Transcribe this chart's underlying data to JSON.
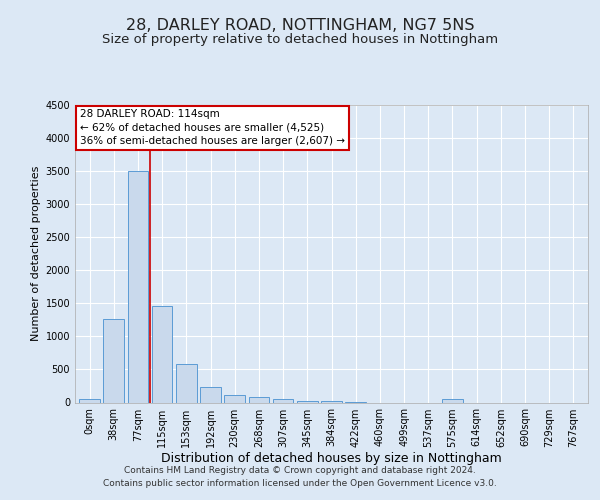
{
  "title1": "28, DARLEY ROAD, NOTTINGHAM, NG7 5NS",
  "title2": "Size of property relative to detached houses in Nottingham",
  "xlabel": "Distribution of detached houses by size in Nottingham",
  "ylabel": "Number of detached properties",
  "bin_labels": [
    "0sqm",
    "38sqm",
    "77sqm",
    "115sqm",
    "153sqm",
    "192sqm",
    "230sqm",
    "268sqm",
    "307sqm",
    "345sqm",
    "384sqm",
    "422sqm",
    "460sqm",
    "499sqm",
    "537sqm",
    "575sqm",
    "614sqm",
    "652sqm",
    "690sqm",
    "729sqm",
    "767sqm"
  ],
  "bar_values": [
    50,
    1270,
    3500,
    1460,
    575,
    240,
    115,
    85,
    55,
    25,
    30,
    5,
    0,
    0,
    0,
    50,
    0,
    0,
    0,
    0,
    0
  ],
  "bar_color": "#c9d9ec",
  "bar_edge_color": "#5b9bd5",
  "annotation_box_text": "28 DARLEY ROAD: 114sqm\n← 62% of detached houses are smaller (4,525)\n36% of semi-detached houses are larger (2,607) →",
  "annotation_box_color": "#cc0000",
  "red_line_index": 2.48,
  "ylim": [
    0,
    4500
  ],
  "yticks": [
    0,
    500,
    1000,
    1500,
    2000,
    2500,
    3000,
    3500,
    4000,
    4500
  ],
  "bg_color": "#dce8f5",
  "plot_bg_color": "#dce8f5",
  "grid_color": "#ffffff",
  "title1_fontsize": 11.5,
  "title2_fontsize": 9.5,
  "xlabel_fontsize": 9,
  "ylabel_fontsize": 8,
  "tick_fontsize": 7,
  "annotation_fontsize": 7.5,
  "footer_fontsize": 6.5,
  "footer_line1": "Contains HM Land Registry data © Crown copyright and database right 2024.",
  "footer_line2": "Contains public sector information licensed under the Open Government Licence v3.0."
}
